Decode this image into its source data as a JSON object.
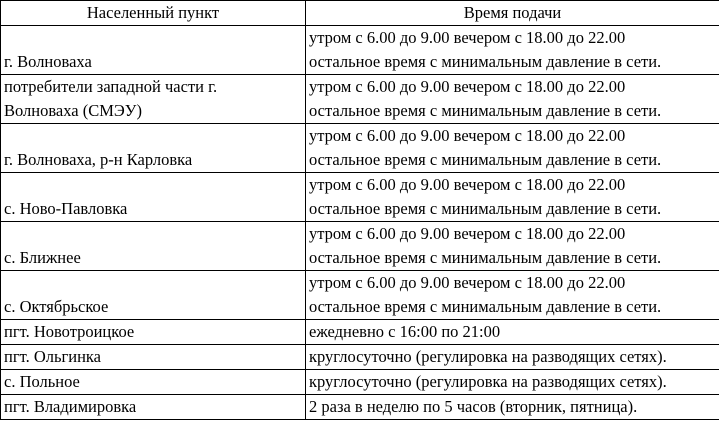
{
  "table": {
    "header": [
      "Населенный пункт",
      "Время подачи"
    ],
    "rows": [
      [
        [
          "г. Волноваха"
        ],
        [
          "утром с 6.00 до 9.00 вечером с 18.00 до 22.00",
          "остальное время с минимальным давление в сети."
        ]
      ],
      [
        [
          "потребители западной части г.",
          "Волноваха (СМЭУ)"
        ],
        [
          "утром с 6.00 до 9.00 вечером с 18.00 до 22.00",
          "остальное время с минимальным давление в сети."
        ]
      ],
      [
        [
          "г. Волноваха, р-н Карловка"
        ],
        [
          "утром с 6.00 до 9.00 вечером с 18.00 до 22.00",
          "остальное время с минимальным давление в сети."
        ]
      ],
      [
        [
          "с. Ново-Павловка"
        ],
        [
          "утром с 6.00 до 9.00 вечером с 18.00 до 22.00",
          "остальное время с минимальным давление в сети."
        ]
      ],
      [
        [
          "с. Ближнее"
        ],
        [
          "утром с 6.00 до 9.00 вечером с 18.00 до 22.00",
          "остальное время с минимальным давление в сети."
        ]
      ],
      [
        [
          "с. Октябрьское"
        ],
        [
          "утром с 6.00 до 9.00 вечером с 18.00 до 22.00",
          "остальное время с минимальным давление в сети."
        ]
      ],
      [
        [
          "пгт. Новотроицкое"
        ],
        [
          "ежедневно с 16:00 по 21:00"
        ]
      ],
      [
        [
          "пгт. Ольгинка"
        ],
        [
          "круглосуточно (регулировка на разводящих сетях)."
        ]
      ],
      [
        [
          "с. Польное"
        ],
        [
          "круглосуточно (регулировка на разводящих сетях)."
        ]
      ],
      [
        [
          "пгт. Владимировка"
        ],
        [
          "2 раза в неделю по 5 часов (вторник, пятница)."
        ]
      ]
    ]
  }
}
